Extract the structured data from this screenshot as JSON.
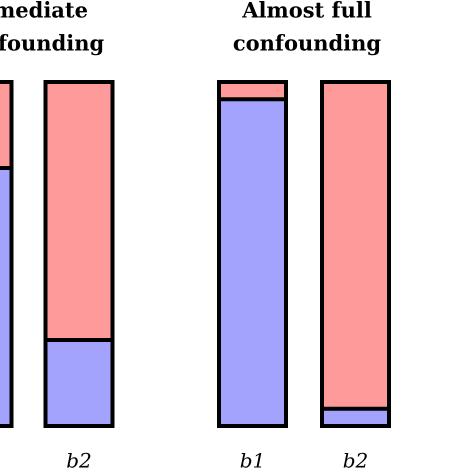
{
  "chart_data": {
    "type": "bar",
    "stacked": true,
    "group_titles": [
      [
        "rmediate",
        "founding"
      ],
      [
        "Almost full",
        "confounding"
      ]
    ],
    "categories": [
      null,
      "b2",
      "b1",
      "b2"
    ],
    "series": [
      {
        "color": "#a3a3fe",
        "values": [
          75,
          25,
          95,
          5
        ]
      },
      {
        "color": "#fe9a9a",
        "values": [
          25,
          75,
          5,
          95
        ]
      }
    ],
    "ylim": [
      0,
      100
    ]
  }
}
